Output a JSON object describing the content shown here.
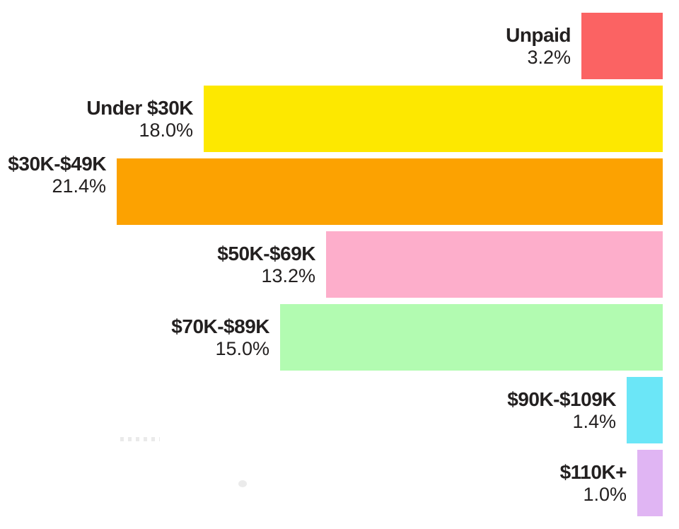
{
  "chart_data": {
    "type": "bar",
    "orientation": "horizontal",
    "bar_alignment": "right",
    "title": "",
    "xlabel": "",
    "ylabel": "",
    "xlim": [
      0,
      21.4
    ],
    "grid": false,
    "legend": false,
    "background": "#ffffff",
    "text_color": "#232020",
    "categories": [
      "Unpaid",
      "Under $30K",
      "$30K-$49K",
      "$50K-$69K",
      "$70K-$89K",
      "$90K-$109K",
      "$110K+"
    ],
    "values": [
      3.2,
      18.0,
      21.4,
      13.2,
      15.0,
      1.4,
      1.0
    ],
    "value_labels": [
      "3.2%",
      "18.0%",
      "21.4%",
      "13.2%",
      "15.0%",
      "1.4%",
      "1.0%"
    ],
    "bar_colors": [
      "#FB6363",
      "#FDE800",
      "#FCA201",
      "#FDAECB",
      "#B2FBB1",
      "#6BE6F7",
      "#E0B5F3"
    ]
  }
}
